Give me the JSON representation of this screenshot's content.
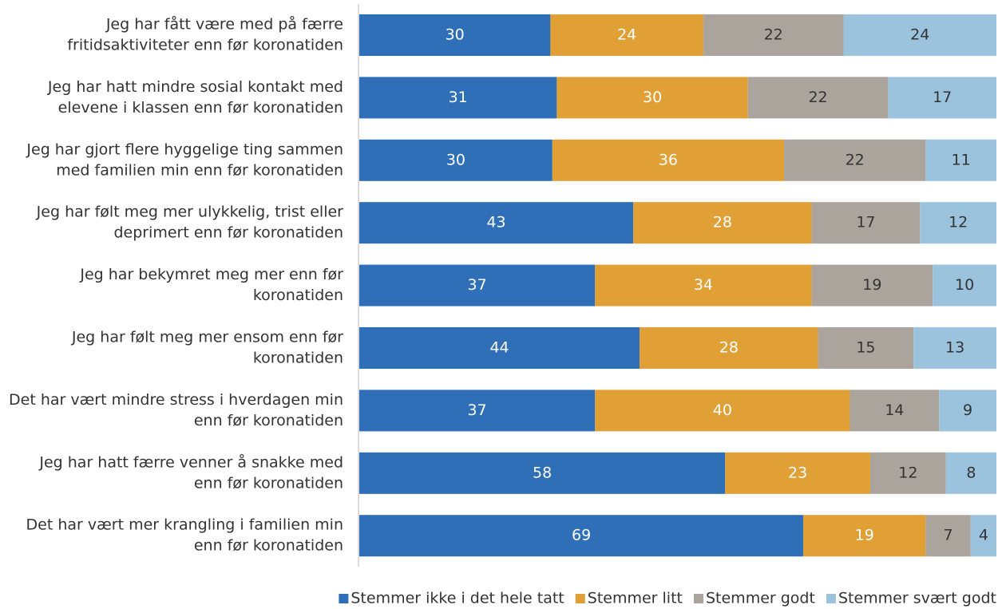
{
  "chart_data": {
    "type": "stacked_barh",
    "categories": [
      [
        "Jeg har fått være med på færre",
        "fritidsaktiviteter enn før koronatiden"
      ],
      [
        "Jeg har hatt mindre sosial kontakt med",
        "elevene i klassen enn før koronatiden"
      ],
      [
        "Jeg har gjort flere hyggelige ting sammen",
        "med familien min enn før koronatiden"
      ],
      [
        "Jeg har følt meg mer ulykkelig, trist eller",
        "deprimert enn før koronatiden"
      ],
      [
        "Jeg har bekymret meg mer enn før",
        "koronatiden"
      ],
      [
        "Jeg har følt meg mer ensom enn før",
        "koronatiden"
      ],
      [
        "Det har vært mindre stress i hverdagen min",
        "enn før koronatiden"
      ],
      [
        "Jeg har hatt færre venner å snakke med",
        "enn før koronatiden"
      ],
      [
        "Det har vært mer krangling i familien min",
        "enn før koronatiden"
      ]
    ],
    "series": [
      {
        "name": "Stemmer ikke i det hele tatt",
        "color": "#2e6fb7",
        "label_color": "#ffffff",
        "values": [
          30,
          31,
          30,
          43,
          37,
          44,
          37,
          58,
          69
        ]
      },
      {
        "name": "Stemmer litt",
        "color": "#e0a035",
        "label_color": "#ffffff",
        "values": [
          24,
          30,
          36,
          28,
          34,
          28,
          40,
          23,
          19
        ]
      },
      {
        "name": "Stemmer godt",
        "color": "#aba49c",
        "label_color": "#333333",
        "values": [
          22,
          22,
          22,
          17,
          19,
          15,
          14,
          12,
          7
        ]
      },
      {
        "name": "Stemmer svært godt",
        "color": "#9cc3de",
        "label_color": "#333333",
        "values": [
          24,
          17,
          11,
          12,
          10,
          13,
          9,
          8,
          4
        ]
      }
    ],
    "legend": "bottom-right"
  }
}
